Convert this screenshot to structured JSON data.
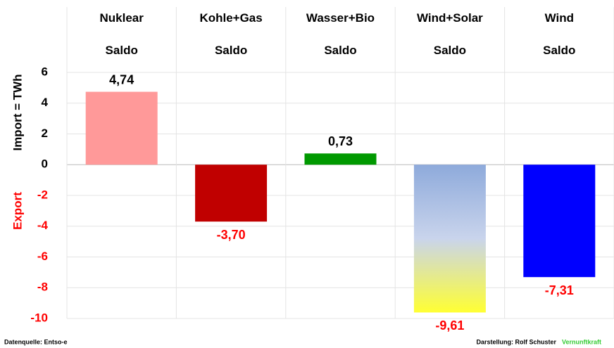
{
  "chart_data": {
    "type": "bar",
    "categories": [
      "Nuklear Saldo",
      "Kohle+Gas Saldo",
      "Wasser+Bio Saldo",
      "Wind+Solar Saldo",
      "Wind Saldo"
    ],
    "values": [
      4.74,
      -3.7,
      0.73,
      -9.61,
      -7.31
    ],
    "value_labels": [
      "4,74",
      "-3,70",
      "0,73",
      "-9,61",
      "-7,31"
    ],
    "colors": [
      "#ff9999",
      "#c00000",
      "#009900",
      [
        "#8eaadb",
        "#c9d4ec",
        "#ffff33"
      ],
      "#0000ff"
    ],
    "ylim": [
      -10,
      6
    ],
    "yticks": [
      -10,
      -8,
      -6,
      -4,
      -2,
      0,
      2,
      4,
      6
    ],
    "grid": true,
    "ylabel_import": "Import = TWh",
    "ylabel_export": "Export",
    "source": "Datenquelle: Entso-e",
    "credit": "Darstellung: Rolf Schuster",
    "brand": "Vernunftkraft"
  }
}
